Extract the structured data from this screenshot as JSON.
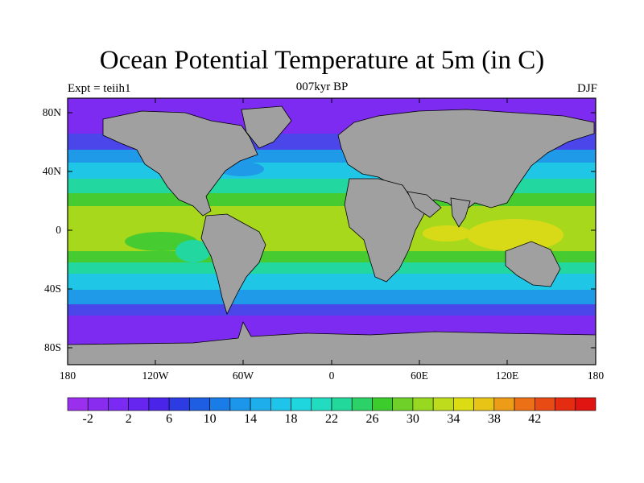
{
  "title": "Ocean Potential Temperature at 5m (in C)",
  "left_string": "Expt = teiih1",
  "center_string": "007kyr BP",
  "right_string": "DJF",
  "lat_labels": [
    "80N",
    "40N",
    "0",
    "40S",
    "80S"
  ],
  "lon_labels": [
    "180",
    "120W",
    "60W",
    "0",
    "60E",
    "120E",
    "180"
  ],
  "colorbar": {
    "labels": [
      "-2",
      "2",
      "6",
      "10",
      "14",
      "18",
      "22",
      "26",
      "30",
      "34",
      "38",
      "42"
    ],
    "colors": [
      "#9a2fee",
      "#8a2cf0",
      "#7a2af2",
      "#6626f0",
      "#4a24e8",
      "#2c3ce2",
      "#1e5ee2",
      "#1a7ce6",
      "#1c96ea",
      "#1eaeec",
      "#1ec4ea",
      "#20d6de",
      "#22dcc0",
      "#22d89a",
      "#2cd268",
      "#3ccc2c",
      "#6ed028",
      "#98d820",
      "#bedc1c",
      "#dcdc14",
      "#e8c416",
      "#ec9c16",
      "#ec7016",
      "#e84c14",
      "#e42c10",
      "#e01410"
    ]
  },
  "map": {
    "land_color": "#a0a0a0",
    "ocean_colors": {
      "polar": "#7d2bf0",
      "subpolar": "#4a46ea",
      "cool": "#1f9ae8",
      "mid": "#1fc6e6",
      "warm_temperate": "#22d8a0",
      "subtropical": "#46cc30",
      "tropical": "#a8d81c",
      "warm_pool": "#d8da18"
    }
  }
}
